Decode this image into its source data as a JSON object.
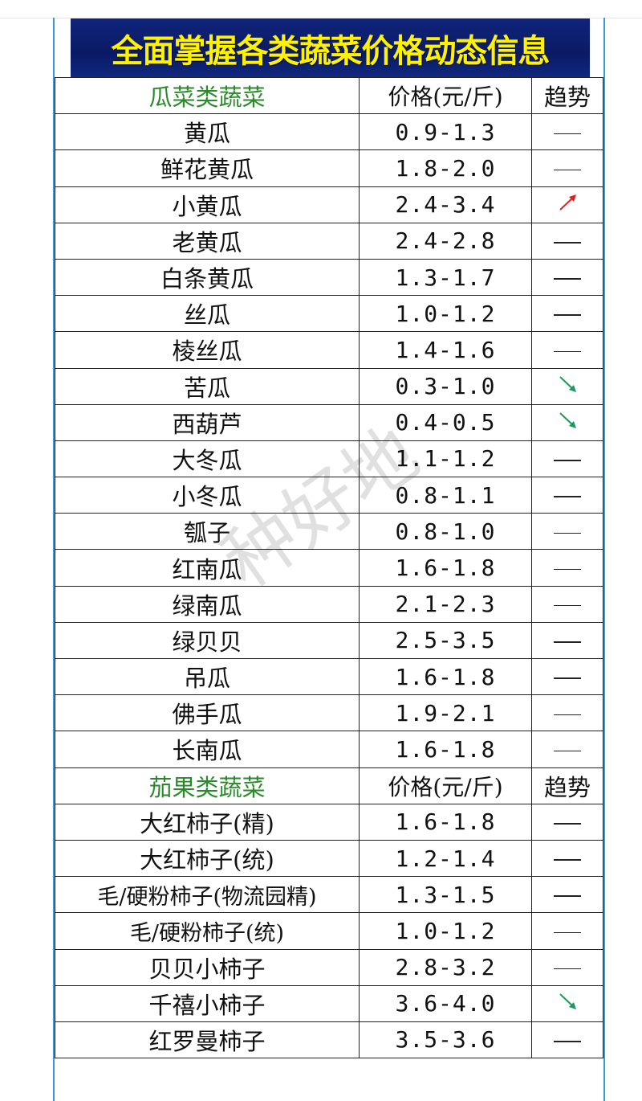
{
  "title": "全面掌握各类蔬菜价格动态信息",
  "watermark": "种好地",
  "colors": {
    "title_bg": "#0a1a66",
    "title_text": "#fff200",
    "category_text": "#2a8a2a",
    "up": "#e02020",
    "down": "#1a9a5a"
  },
  "sections": [
    {
      "category": "瓜菜类蔬菜",
      "price_header": "价格(元/斤)",
      "trend_header": "趋势",
      "rows": [
        {
          "name": "黄瓜",
          "price": "0.9-1.3",
          "trend": "flat"
        },
        {
          "name": "鲜花黄瓜",
          "price": "1.8-2.0",
          "trend": "flat"
        },
        {
          "name": "小黄瓜",
          "price": "2.4-3.4",
          "trend": "up"
        },
        {
          "name": "老黄瓜",
          "price": "2.4-2.8",
          "trend": "flat"
        },
        {
          "name": "白条黄瓜",
          "price": "1.3-1.7",
          "trend": "flat"
        },
        {
          "name": "丝瓜",
          "price": "1.0-1.2",
          "trend": "flat"
        },
        {
          "name": "棱丝瓜",
          "price": "1.4-1.6",
          "trend": "flat"
        },
        {
          "name": "苦瓜",
          "price": "0.3-1.0",
          "trend": "down"
        },
        {
          "name": "西葫芦",
          "price": "0.4-0.5",
          "trend": "down"
        },
        {
          "name": "大冬瓜",
          "price": "1.1-1.2",
          "trend": "flat"
        },
        {
          "name": "小冬瓜",
          "price": "0.8-1.1",
          "trend": "flat"
        },
        {
          "name": "瓠子",
          "price": "0.8-1.0",
          "trend": "flat"
        },
        {
          "name": "红南瓜",
          "price": "1.6-1.8",
          "trend": "flat"
        },
        {
          "name": "绿南瓜",
          "price": "2.1-2.3",
          "trend": "flat"
        },
        {
          "name": "绿贝贝",
          "price": "2.5-3.5",
          "trend": "flat"
        },
        {
          "name": "吊瓜",
          "price": "1.6-1.8",
          "trend": "flat"
        },
        {
          "name": "佛手瓜",
          "price": "1.9-2.1",
          "trend": "flat"
        },
        {
          "name": "长南瓜",
          "price": "1.6-1.8",
          "trend": "flat"
        }
      ]
    },
    {
      "category": "茄果类蔬菜",
      "price_header": "价格(元/斤)",
      "trend_header": "趋势",
      "rows": [
        {
          "name": "大红柿子(精)",
          "price": "1.6-1.8",
          "trend": "flat"
        },
        {
          "name": "大红柿子(统)",
          "price": "1.2-1.4",
          "trend": "flat"
        },
        {
          "name": "毛/硬粉柿子(物流园精)",
          "price": "1.3-1.5",
          "trend": "flat"
        },
        {
          "name": "毛/硬粉柿子(统)",
          "price": "1.0-1.2",
          "trend": "flat"
        },
        {
          "name": "贝贝小柿子",
          "price": "2.8-3.2",
          "trend": "flat"
        },
        {
          "name": "千禧小柿子",
          "price": "3.6-4.0",
          "trend": "down"
        },
        {
          "name": "红罗曼柿子",
          "price": "3.5-3.6",
          "trend": "flat"
        }
      ]
    }
  ]
}
